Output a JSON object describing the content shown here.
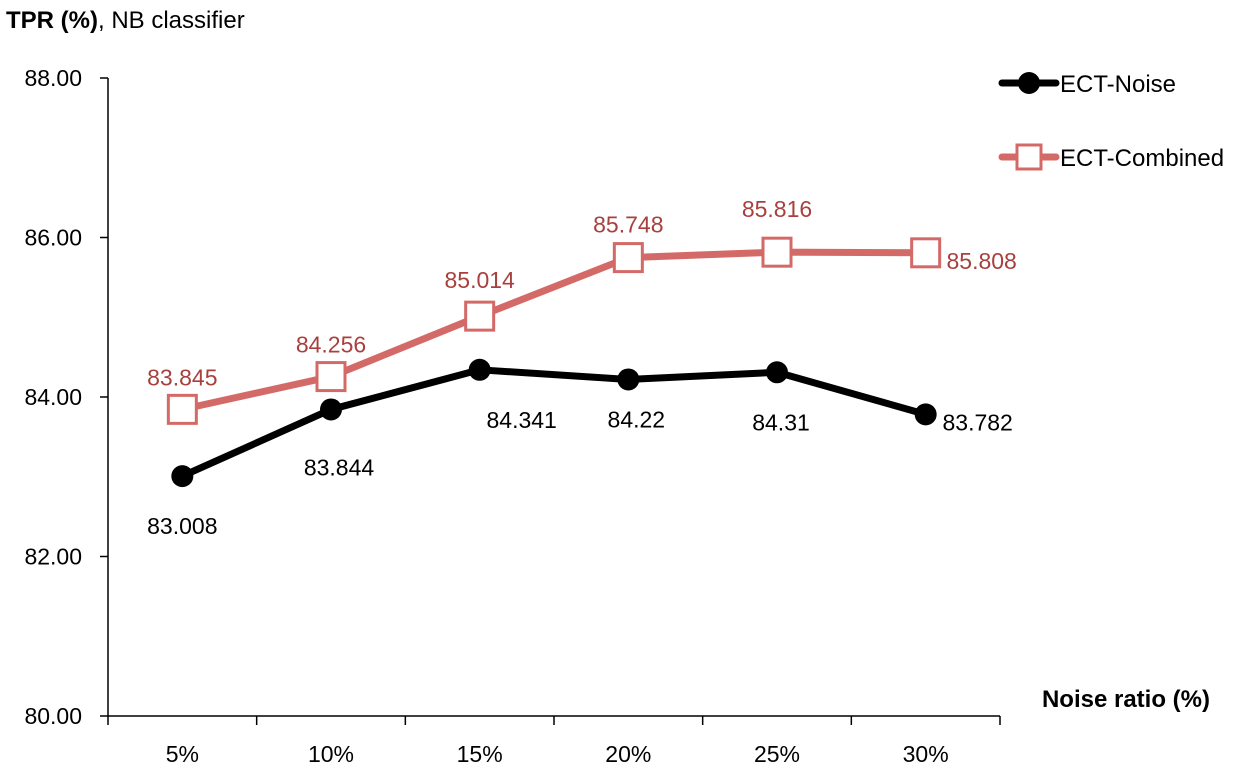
{
  "chart_data": {
    "type": "line",
    "title_bold": "TPR (%)",
    "title_rest": ", NB classifier",
    "xlabel": "Noise ratio (%)",
    "ylabel": "",
    "categories": [
      "5%",
      "10%",
      "15%",
      "20%",
      "25%",
      "30%"
    ],
    "ylim": [
      80,
      88
    ],
    "yticks": [
      80,
      82,
      84,
      86,
      88
    ],
    "ytick_labels": [
      "80.00",
      "82.00",
      "84.00",
      "86.00",
      "88.00"
    ],
    "grid": false,
    "legend_position": "top-right",
    "series": [
      {
        "name": "ECT-Noise",
        "marker": "circle",
        "color": "#000000",
        "values": [
          83.008,
          83.844,
          84.341,
          84.22,
          84.31,
          83.782
        ],
        "labels": [
          "83.008",
          "83.844",
          "84.341",
          "84.22",
          "84.31",
          "83.782"
        ]
      },
      {
        "name": "ECT-Combined",
        "marker": "square",
        "color": "#d46a67",
        "label_color": "#a8403e",
        "values": [
          83.845,
          84.256,
          85.014,
          85.748,
          85.816,
          85.808
        ],
        "labels": [
          "83.845",
          "84.256",
          "85.014",
          "85.748",
          "85.816",
          "85.808"
        ]
      }
    ]
  }
}
